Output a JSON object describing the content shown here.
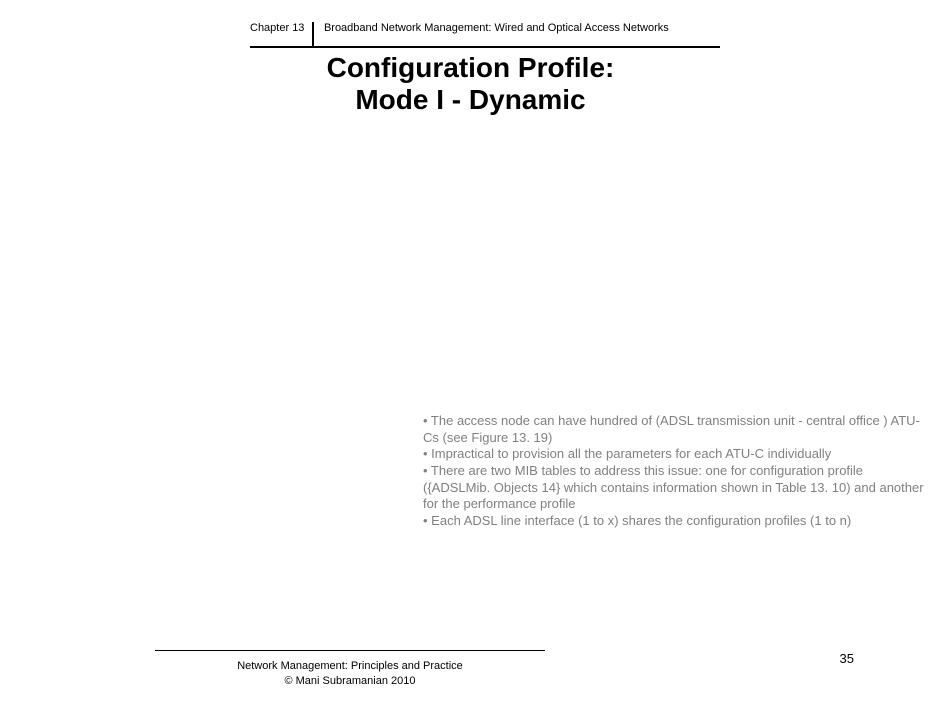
{
  "header": {
    "chapter_label": "Chapter 13",
    "chapter_title": "Broadband Network Management: Wired and Optical Access Networks"
  },
  "title": {
    "line1": "Configuration Profile:",
    "line2": "Mode I - Dynamic"
  },
  "notes": {
    "b1": "• The access node can have hundred of (ADSL transmission unit - central office ) ATU-Cs (see Figure 13. 19)",
    "b2": "• Impractical to provision all the parameters for each ATU-C individually",
    "b3": "• There are two MIB tables to address this issue: one for configuration profile ({ADSLMib. Objects 14} which contains information shown in Table 13. 10) and another for the performance profile",
    "b4": "• Each ADSL line interface (1 to x) shares the configuration profiles (1 to n)"
  },
  "footer": {
    "line1": "Network Management: Principles and Practice",
    "line2": "© Mani Subramanian 2010"
  },
  "page_number": "35",
  "colors": {
    "text": "#000000",
    "notes_text": "#808080",
    "background": "#ffffff"
  },
  "typography": {
    "header_fontsize": 11,
    "title_fontsize": 28,
    "notes_fontsize": 13,
    "footer_fontsize": 11,
    "page_number_fontsize": 13
  }
}
